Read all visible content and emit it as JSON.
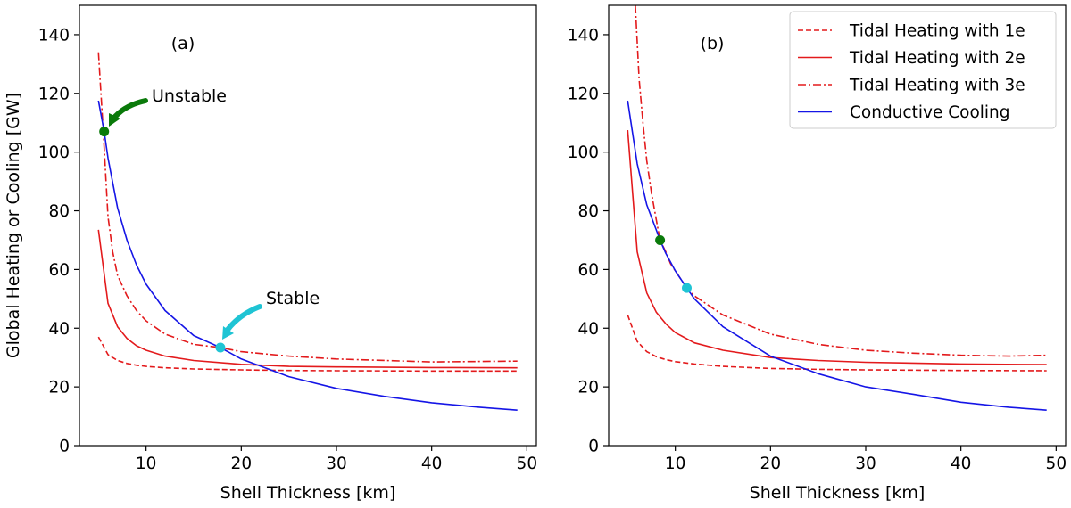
{
  "chart_data": [
    {
      "type": "line",
      "panel_label": "(a)",
      "xlabel": "Shell Thickness [km]",
      "ylabel": "Global Heating or Cooling [GW]",
      "xlim": [
        3,
        51
      ],
      "ylim": [
        0,
        150
      ],
      "xticks": [
        10,
        20,
        30,
        40,
        50
      ],
      "yticks": [
        0,
        20,
        40,
        60,
        80,
        100,
        120,
        140
      ],
      "grid": false,
      "legend": "none",
      "series": [
        {
          "name": "Tidal Heating with 1e",
          "style": "dashed",
          "color": "#e31a1c",
          "x": [
            5,
            6,
            7,
            8,
            9,
            10,
            12,
            15,
            20,
            25,
            30,
            40,
            49
          ],
          "y": [
            37,
            31,
            29,
            28,
            27.4,
            27,
            26.5,
            26.1,
            25.8,
            25.6,
            25.5,
            25.4,
            25.4
          ]
        },
        {
          "name": "Tidal Heating with 2e",
          "style": "solid",
          "color": "#e31a1c",
          "x": [
            5,
            6,
            7,
            8,
            9,
            10,
            12,
            15,
            20,
            25,
            30,
            40,
            49
          ],
          "y": [
            73.5,
            48.5,
            40.5,
            36.5,
            34,
            32.5,
            30.5,
            29,
            27.7,
            27,
            26.8,
            26.6,
            26.5
          ]
        },
        {
          "name": "Tidal Heating with 3e",
          "style": "dashdot",
          "color": "#e31a1c",
          "x": [
            5,
            5.5,
            6,
            6.5,
            7,
            8,
            9,
            10,
            12,
            15,
            17.8,
            20,
            25,
            30,
            40,
            49
          ],
          "y": [
            134,
            107,
            78,
            66,
            58,
            51,
            46,
            42.5,
            38,
            34.5,
            33.4,
            32,
            30.5,
            29.5,
            28.5,
            28.8
          ]
        },
        {
          "name": "Conductive Cooling",
          "style": "solid",
          "color": "#1515e6",
          "x": [
            5,
            5.6,
            6,
            7,
            8,
            9,
            10,
            12,
            15,
            17.8,
            20,
            25,
            30,
            35,
            40,
            45,
            49
          ],
          "y": [
            117.5,
            107,
            98,
            81,
            70,
            61.5,
            55,
            46,
            37.5,
            33.4,
            29.5,
            23.5,
            19.5,
            16.8,
            14.6,
            13.1,
            12.1
          ]
        }
      ],
      "markers": [
        {
          "name": "unstable-point",
          "x": 5.6,
          "y": 107,
          "color": "#0a7a0a"
        },
        {
          "name": "stable-point",
          "x": 17.8,
          "y": 33.4,
          "color": "#1fc4d4"
        }
      ],
      "annotations": [
        {
          "name": "unstable",
          "text": "Unstable",
          "x": 10.4,
          "y": 118,
          "arrow_color": "#0a7a0a"
        },
        {
          "name": "stable",
          "text": "Stable",
          "x": 22.9,
          "y": 49,
          "arrow_color": "#1fc4d4"
        }
      ]
    },
    {
      "type": "line",
      "panel_label": "(b)",
      "xlabel": "Shell Thickness [km]",
      "ylabel": "",
      "xlim": [
        3,
        51
      ],
      "ylim": [
        0,
        150
      ],
      "xticks": [
        10,
        20,
        30,
        40,
        50
      ],
      "yticks": [
        0,
        20,
        40,
        60,
        80,
        100,
        120,
        140
      ],
      "grid": false,
      "legend": "top-right",
      "series": [
        {
          "name": "Tidal Heating with 1e",
          "style": "dashed",
          "color": "#e31a1c",
          "x": [
            5,
            6,
            7,
            8,
            9,
            10,
            12,
            15,
            20,
            25,
            30,
            40,
            49
          ],
          "y": [
            44.5,
            35.5,
            32,
            30.3,
            29.3,
            28.6,
            27.8,
            27,
            26.3,
            26,
            25.8,
            25.6,
            25.5
          ]
        },
        {
          "name": "Tidal Heating with 2e",
          "style": "solid",
          "color": "#e31a1c",
          "x": [
            5,
            6,
            7,
            8,
            9,
            10,
            12,
            15,
            20,
            25,
            30,
            40,
            49
          ],
          "y": [
            107.5,
            66,
            52,
            45.5,
            41.5,
            38.5,
            35,
            32.5,
            30,
            29,
            28.4,
            27.8,
            27.6
          ]
        },
        {
          "name": "Tidal Heating with 3e",
          "style": "dashdot",
          "color": "#e31a1c",
          "x": [
            5.8,
            6.2,
            6.6,
            7,
            7.5,
            8,
            8.4,
            9,
            9.5,
            10,
            11.2,
            12,
            15,
            20,
            25,
            30,
            35,
            40,
            45,
            49
          ],
          "y": [
            150,
            125,
            110,
            97,
            86,
            77,
            70,
            66,
            62,
            59.5,
            53.7,
            51,
            44.5,
            38,
            34.5,
            32.5,
            31.5,
            30.8,
            30.5,
            30.8
          ]
        },
        {
          "name": "Conductive Cooling",
          "style": "solid",
          "color": "#1515e6",
          "x": [
            5,
            6,
            7,
            8,
            8.4,
            9,
            10,
            11.2,
            12,
            15,
            20,
            25,
            30,
            35,
            40,
            45,
            49
          ],
          "y": [
            117.5,
            96,
            82,
            73.5,
            70,
            65.5,
            59.5,
            53.7,
            50,
            40.5,
            30.5,
            24.5,
            20,
            17.5,
            14.8,
            13.1,
            12.1
          ]
        }
      ],
      "markers": [
        {
          "name": "unstable-point",
          "x": 8.4,
          "y": 70,
          "color": "#0a7a0a"
        },
        {
          "name": "stable-point",
          "x": 11.2,
          "y": 53.7,
          "color": "#1fc4d4"
        }
      ],
      "annotations": []
    }
  ]
}
